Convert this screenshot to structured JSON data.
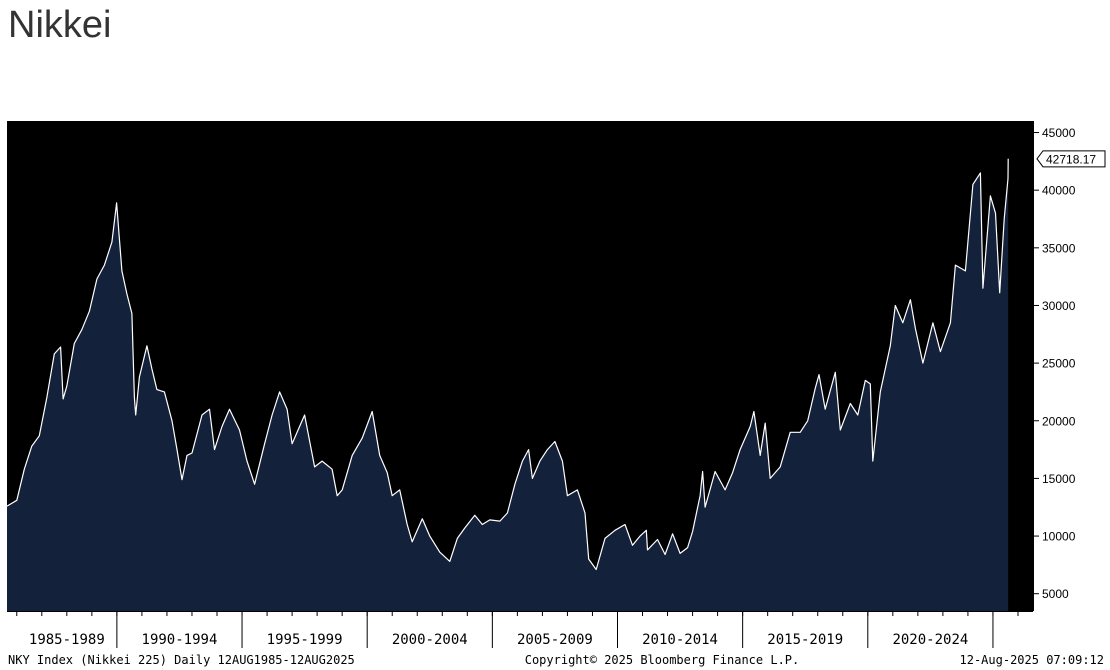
{
  "page_title": "Nikkei",
  "chart_data": {
    "type": "area",
    "series": [
      {
        "values": [
          [
            1985.61,
            12600
          ],
          [
            1986.0,
            13100
          ],
          [
            1986.3,
            15800
          ],
          [
            1986.6,
            17800
          ],
          [
            1986.9,
            18700
          ],
          [
            1987.2,
            22000
          ],
          [
            1987.5,
            25800
          ],
          [
            1987.75,
            26400
          ],
          [
            1987.85,
            21900
          ],
          [
            1988.0,
            23000
          ],
          [
            1988.3,
            26700
          ],
          [
            1988.6,
            27900
          ],
          [
            1988.9,
            29500
          ],
          [
            1989.2,
            32300
          ],
          [
            1989.5,
            33500
          ],
          [
            1989.8,
            35500
          ],
          [
            1989.99,
            38900
          ],
          [
            1990.2,
            33000
          ],
          [
            1990.4,
            31000
          ],
          [
            1990.6,
            29300
          ],
          [
            1990.7,
            22000
          ],
          [
            1990.75,
            20500
          ],
          [
            1990.9,
            23800
          ],
          [
            1991.2,
            26500
          ],
          [
            1991.4,
            24500
          ],
          [
            1991.6,
            22700
          ],
          [
            1991.9,
            22500
          ],
          [
            1992.2,
            20000
          ],
          [
            1992.4,
            17500
          ],
          [
            1992.6,
            14900
          ],
          [
            1992.8,
            17000
          ],
          [
            1993.0,
            17200
          ],
          [
            1993.4,
            20500
          ],
          [
            1993.7,
            21000
          ],
          [
            1993.9,
            17500
          ],
          [
            1994.2,
            19500
          ],
          [
            1994.5,
            21000
          ],
          [
            1994.9,
            19200
          ],
          [
            1995.2,
            16500
          ],
          [
            1995.5,
            14500
          ],
          [
            1995.9,
            18000
          ],
          [
            1996.2,
            20500
          ],
          [
            1996.5,
            22500
          ],
          [
            1996.8,
            21000
          ],
          [
            1997.0,
            18000
          ],
          [
            1997.4,
            20000
          ],
          [
            1997.5,
            20500
          ],
          [
            1997.9,
            16000
          ],
          [
            1998.2,
            16500
          ],
          [
            1998.6,
            15800
          ],
          [
            1998.8,
            13500
          ],
          [
            1999.0,
            14000
          ],
          [
            1999.4,
            17000
          ],
          [
            1999.8,
            18500
          ],
          [
            2000.2,
            20800
          ],
          [
            2000.5,
            17000
          ],
          [
            2000.8,
            15500
          ],
          [
            2001.0,
            13500
          ],
          [
            2001.3,
            14000
          ],
          [
            2001.6,
            11000
          ],
          [
            2001.8,
            9500
          ],
          [
            2002.2,
            11500
          ],
          [
            2002.5,
            10000
          ],
          [
            2002.9,
            8600
          ],
          [
            2003.3,
            7800
          ],
          [
            2003.6,
            9800
          ],
          [
            2003.9,
            10700
          ],
          [
            2004.3,
            11800
          ],
          [
            2004.6,
            11000
          ],
          [
            2004.9,
            11400
          ],
          [
            2005.3,
            11300
          ],
          [
            2005.6,
            12000
          ],
          [
            2005.9,
            14500
          ],
          [
            2006.2,
            16500
          ],
          [
            2006.45,
            17500
          ],
          [
            2006.6,
            15000
          ],
          [
            2006.9,
            16500
          ],
          [
            2007.2,
            17500
          ],
          [
            2007.5,
            18200
          ],
          [
            2007.8,
            16500
          ],
          [
            2008.0,
            13500
          ],
          [
            2008.4,
            14000
          ],
          [
            2008.7,
            12000
          ],
          [
            2008.85,
            8000
          ],
          [
            2009.15,
            7100
          ],
          [
            2009.5,
            9800
          ],
          [
            2009.9,
            10500
          ],
          [
            2010.3,
            11000
          ],
          [
            2010.6,
            9200
          ],
          [
            2010.9,
            10000
          ],
          [
            2011.15,
            10500
          ],
          [
            2011.2,
            8800
          ],
          [
            2011.6,
            9700
          ],
          [
            2011.9,
            8400
          ],
          [
            2012.2,
            10200
          ],
          [
            2012.5,
            8500
          ],
          [
            2012.8,
            9000
          ],
          [
            2013.0,
            10400
          ],
          [
            2013.3,
            13500
          ],
          [
            2013.4,
            15600
          ],
          [
            2013.5,
            12500
          ],
          [
            2013.9,
            15600
          ],
          [
            2014.3,
            14000
          ],
          [
            2014.6,
            15500
          ],
          [
            2014.9,
            17500
          ],
          [
            2015.3,
            19500
          ],
          [
            2015.45,
            20800
          ],
          [
            2015.7,
            17000
          ],
          [
            2015.9,
            19800
          ],
          [
            2016.1,
            15000
          ],
          [
            2016.5,
            16000
          ],
          [
            2016.9,
            19000
          ],
          [
            2017.3,
            19000
          ],
          [
            2017.6,
            20000
          ],
          [
            2017.9,
            22800
          ],
          [
            2018.05,
            24000
          ],
          [
            2018.3,
            21000
          ],
          [
            2018.7,
            24200
          ],
          [
            2018.9,
            19200
          ],
          [
            2019.3,
            21500
          ],
          [
            2019.6,
            20500
          ],
          [
            2019.9,
            23500
          ],
          [
            2020.1,
            23200
          ],
          [
            2020.2,
            16500
          ],
          [
            2020.5,
            22500
          ],
          [
            2020.9,
            26500
          ],
          [
            2021.1,
            30000
          ],
          [
            2021.4,
            28500
          ],
          [
            2021.7,
            30500
          ],
          [
            2021.9,
            28000
          ],
          [
            2022.2,
            25000
          ],
          [
            2022.6,
            28500
          ],
          [
            2022.9,
            26000
          ],
          [
            2023.3,
            28500
          ],
          [
            2023.5,
            33500
          ],
          [
            2023.9,
            33000
          ],
          [
            2024.2,
            40500
          ],
          [
            2024.5,
            41500
          ],
          [
            2024.6,
            31500
          ],
          [
            2024.9,
            39500
          ],
          [
            2025.1,
            38000
          ],
          [
            2025.27,
            31100
          ],
          [
            2025.45,
            37500
          ],
          [
            2025.6,
            41000
          ],
          [
            2025.61,
            42718.17
          ]
        ]
      }
    ],
    "ylim": [
      3500,
      46000
    ],
    "xlim": [
      1985.61,
      2026.6
    ],
    "yticks": [
      5000,
      10000,
      15000,
      20000,
      25000,
      30000,
      35000,
      40000,
      45000
    ],
    "ytick_labels": [
      "5000",
      "10000",
      "15000",
      "20000",
      "25000",
      "30000",
      "35000",
      "40000",
      "45000"
    ],
    "x_boundaries": [
      1990.0,
      1995.0,
      2000.0,
      2005.0,
      2010.0,
      2015.0,
      2020.0,
      2025.0
    ],
    "x_period_labels": [
      {
        "label": "1985-1989",
        "center": 1988.0
      },
      {
        "label": "1990-1994",
        "center": 1992.5
      },
      {
        "label": "1995-1999",
        "center": 1997.5
      },
      {
        "label": "2000-2004",
        "center": 2002.5
      },
      {
        "label": "2005-2009",
        "center": 2007.5
      },
      {
        "label": "2010-2014",
        "center": 2012.5
      },
      {
        "label": "2015-2019",
        "center": 2017.5
      },
      {
        "label": "2020-2024",
        "center": 2022.5
      }
    ],
    "last_value": 42718.17,
    "last_value_label": "42718.17",
    "grid": false,
    "colors": {
      "background": "#000000",
      "fill": "#14213b",
      "line": "#ffffff",
      "frame": "#000000",
      "axis_text": "#000000"
    }
  },
  "footer": {
    "left": "NKY Index (Nikkei 225)  Daily 12AUG1985-12AUG2025",
    "center": "Copyright© 2025 Bloomberg Finance L.P.",
    "right": "12-Aug-2025 07:09:12"
  }
}
